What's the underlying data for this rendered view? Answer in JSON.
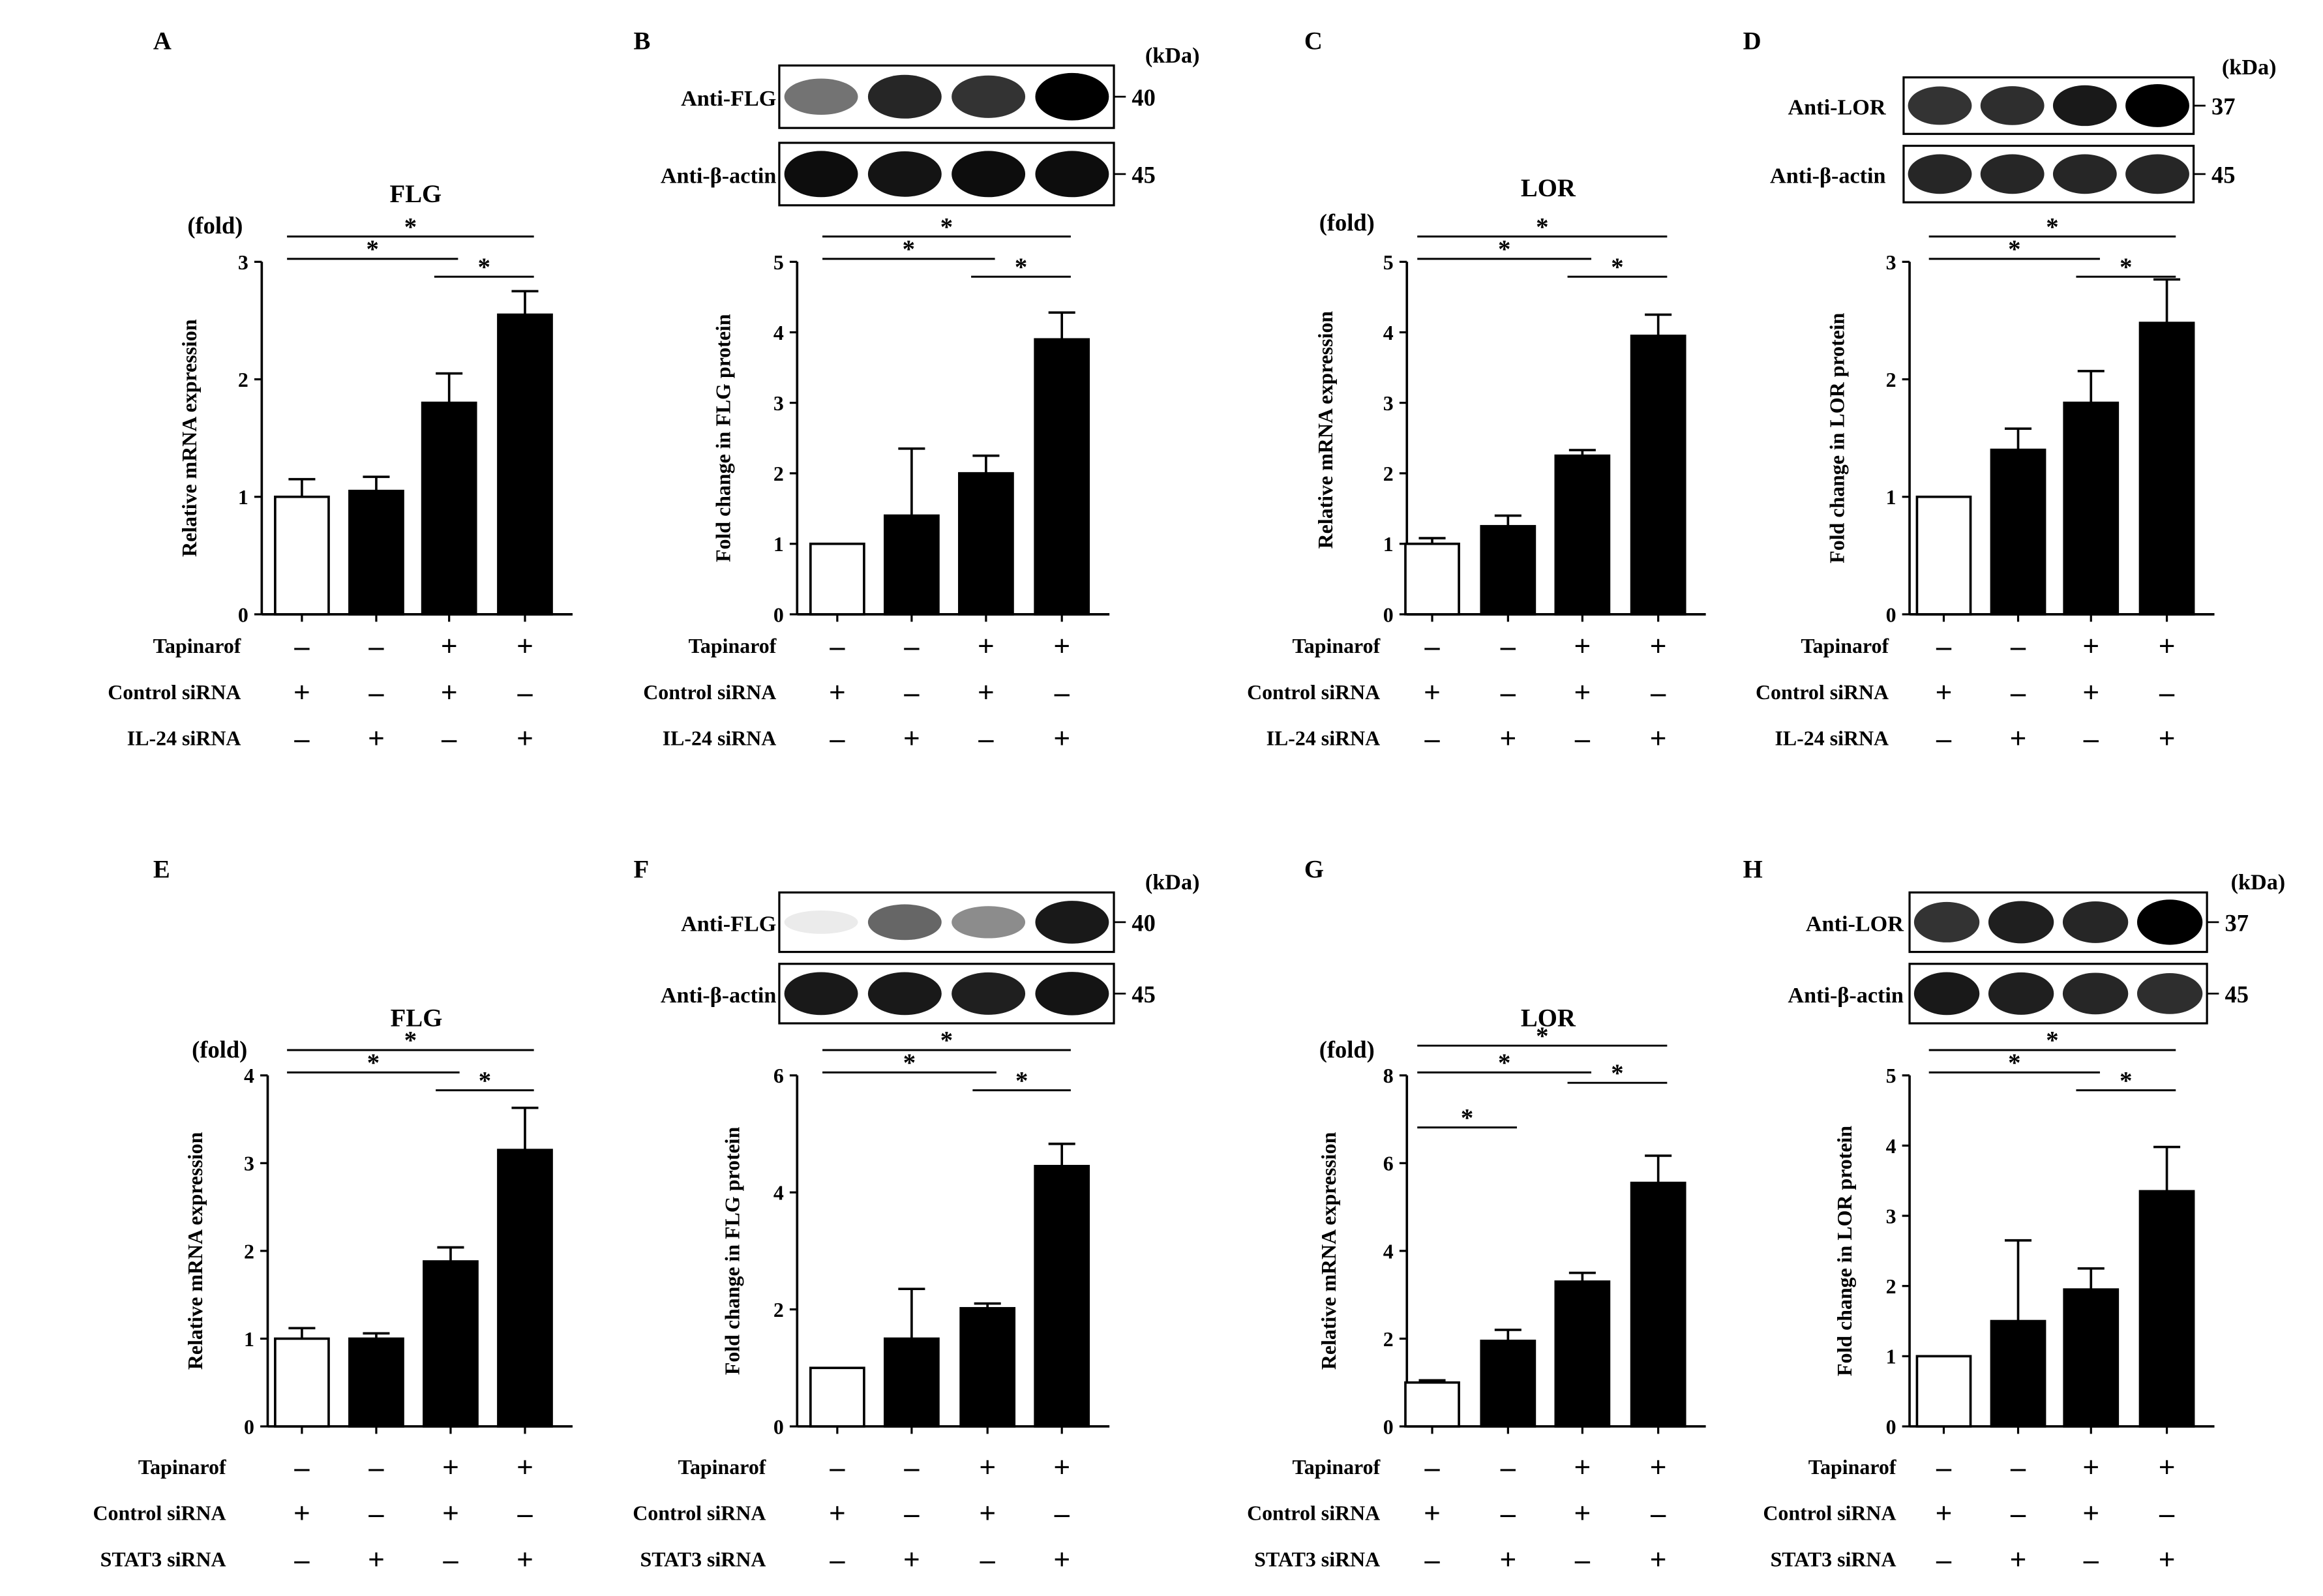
{
  "figure": {
    "unit_label": "(kDa)",
    "fold_label": "(fold)",
    "significance_symbol": "*",
    "plus_symbol": "+",
    "minus_symbol": "–",
    "colors": {
      "bar_fill": "#000000",
      "control_fill": "#ffffff",
      "ink": "#000000"
    }
  },
  "chart_data": [
    {
      "panel": "A",
      "type": "bar",
      "title": "FLG",
      "ylabel": "Relative mRNA expression",
      "ylim": [
        0,
        3
      ],
      "yticks": [
        0,
        1,
        2,
        3
      ],
      "values": [
        1.0,
        1.05,
        1.8,
        2.55
      ],
      "errors": [
        0.15,
        0.12,
        0.25,
        0.2
      ],
      "fills": [
        "white",
        "black",
        "black",
        "black"
      ],
      "show_fold": true,
      "significance": [
        {
          "from": 0,
          "to": 3,
          "label": "*"
        },
        {
          "from": 0,
          "to": 2,
          "label": "*"
        },
        {
          "from": 2,
          "to": 3,
          "label": "*"
        }
      ],
      "conditions": [
        {
          "label": "Tapinarof",
          "signs": [
            "-",
            "-",
            "+",
            "+"
          ]
        },
        {
          "label": "Control siRNA",
          "signs": [
            "+",
            "-",
            "+",
            "-"
          ]
        },
        {
          "label": "IL-24 siRNA",
          "signs": [
            "-",
            "+",
            "-",
            "+"
          ]
        }
      ]
    },
    {
      "panel": "B",
      "type": "bar",
      "title": "",
      "ylabel": "Fold change in FLG protein",
      "ylim": [
        0,
        5
      ],
      "yticks": [
        0,
        1,
        2,
        3,
        4,
        5
      ],
      "values": [
        1.0,
        1.4,
        2.0,
        3.9
      ],
      "errors": [
        0.0,
        0.95,
        0.25,
        0.38
      ],
      "fills": [
        "white",
        "black",
        "black",
        "black"
      ],
      "show_fold": false,
      "significance": [
        {
          "from": 0,
          "to": 3,
          "label": "*"
        },
        {
          "from": 0,
          "to": 2,
          "label": "*"
        },
        {
          "from": 2,
          "to": 3,
          "label": "*"
        }
      ],
      "blot": {
        "rows": [
          {
            "antibody": "Anti-FLG",
            "kda": "40",
            "intensity": [
              0.55,
              0.85,
              0.8,
              1.0
            ]
          },
          {
            "antibody": "Anti-β-actin",
            "kda": "45",
            "intensity": [
              0.95,
              0.92,
              0.95,
              0.95
            ]
          }
        ]
      },
      "conditions": [
        {
          "label": "Tapinarof",
          "signs": [
            "-",
            "-",
            "+",
            "+"
          ]
        },
        {
          "label": "Control siRNA",
          "signs": [
            "+",
            "-",
            "+",
            "-"
          ]
        },
        {
          "label": "IL-24 siRNA",
          "signs": [
            "-",
            "+",
            "-",
            "+"
          ]
        }
      ]
    },
    {
      "panel": "C",
      "type": "bar",
      "title": "LOR",
      "ylabel": "Relative mRNA expression",
      "ylim": [
        0,
        5
      ],
      "yticks": [
        0,
        1,
        2,
        3,
        4,
        5
      ],
      "values": [
        1.0,
        1.25,
        2.25,
        3.95
      ],
      "errors": [
        0.08,
        0.15,
        0.08,
        0.3
      ],
      "fills": [
        "white",
        "black",
        "black",
        "black"
      ],
      "show_fold": true,
      "significance": [
        {
          "from": 0,
          "to": 3,
          "label": "*"
        },
        {
          "from": 0,
          "to": 2,
          "label": "*"
        },
        {
          "from": 2,
          "to": 3,
          "label": "*"
        }
      ],
      "conditions": [
        {
          "label": "Tapinarof",
          "signs": [
            "-",
            "-",
            "+",
            "+"
          ]
        },
        {
          "label": "Control siRNA",
          "signs": [
            "+",
            "-",
            "+",
            "-"
          ]
        },
        {
          "label": "IL-24 siRNA",
          "signs": [
            "-",
            "+",
            "-",
            "+"
          ]
        }
      ]
    },
    {
      "panel": "D",
      "type": "bar",
      "title": "",
      "ylabel": "Fold change in LOR protein",
      "ylim": [
        0,
        3
      ],
      "yticks": [
        0,
        1,
        2,
        3
      ],
      "values": [
        1.0,
        1.4,
        1.8,
        2.48
      ],
      "errors": [
        0.0,
        0.18,
        0.27,
        0.37
      ],
      "fills": [
        "white",
        "black",
        "black",
        "black"
      ],
      "show_fold": false,
      "significance": [
        {
          "from": 0,
          "to": 3,
          "label": "*"
        },
        {
          "from": 0,
          "to": 2,
          "label": "*"
        },
        {
          "from": 2,
          "to": 3,
          "label": "*"
        }
      ],
      "blot": {
        "rows": [
          {
            "antibody": "Anti-LOR",
            "kda": "37",
            "intensity": [
              0.8,
              0.82,
              0.9,
              1.0
            ]
          },
          {
            "antibody": "Anti-β-actin",
            "kda": "45",
            "intensity": [
              0.85,
              0.85,
              0.85,
              0.85
            ]
          }
        ]
      },
      "conditions": [
        {
          "label": "Tapinarof",
          "signs": [
            "-",
            "-",
            "+",
            "+"
          ]
        },
        {
          "label": "Control siRNA",
          "signs": [
            "+",
            "-",
            "+",
            "-"
          ]
        },
        {
          "label": "IL-24 siRNA",
          "signs": [
            "-",
            "+",
            "-",
            "+"
          ]
        }
      ]
    },
    {
      "panel": "E",
      "type": "bar",
      "title": "FLG",
      "ylabel": "Relative mRNA expression",
      "ylim": [
        0,
        4
      ],
      "yticks": [
        0,
        1,
        2,
        3,
        4
      ],
      "values": [
        1.0,
        1.0,
        1.88,
        3.15
      ],
      "errors": [
        0.12,
        0.06,
        0.16,
        0.48
      ],
      "fills": [
        "white",
        "black",
        "black",
        "black"
      ],
      "show_fold": true,
      "significance": [
        {
          "from": 0,
          "to": 3,
          "label": "*"
        },
        {
          "from": 0,
          "to": 2,
          "label": "*"
        },
        {
          "from": 2,
          "to": 3,
          "label": "*"
        }
      ],
      "conditions": [
        {
          "label": "Tapinarof",
          "signs": [
            "-",
            "-",
            "+",
            "+"
          ]
        },
        {
          "label": "Control siRNA",
          "signs": [
            "+",
            "-",
            "+",
            "-"
          ]
        },
        {
          "label": "STAT3 siRNA",
          "signs": [
            "-",
            "+",
            "-",
            "+"
          ]
        }
      ]
    },
    {
      "panel": "F",
      "type": "bar",
      "title": "",
      "ylabel": "Fold change in FLG protein",
      "ylim": [
        0,
        6
      ],
      "yticks": [
        0,
        2,
        4,
        6
      ],
      "values": [
        1.0,
        1.5,
        2.02,
        4.45
      ],
      "errors": [
        0.0,
        0.85,
        0.08,
        0.38
      ],
      "fills": [
        "white",
        "black",
        "black",
        "black"
      ],
      "show_fold": false,
      "significance": [
        {
          "from": 0,
          "to": 3,
          "label": "*"
        },
        {
          "from": 0,
          "to": 2,
          "label": "*"
        },
        {
          "from": 2,
          "to": 3,
          "label": "*"
        }
      ],
      "blot": {
        "rows": [
          {
            "antibody": "Anti-FLG",
            "kda": "40",
            "intensity": [
              0.08,
              0.6,
              0.45,
              0.9
            ]
          },
          {
            "antibody": "Anti-β-actin",
            "kda": "45",
            "intensity": [
              0.9,
              0.9,
              0.88,
              0.92
            ]
          }
        ]
      },
      "conditions": [
        {
          "label": "Tapinarof",
          "signs": [
            "-",
            "-",
            "+",
            "+"
          ]
        },
        {
          "label": "Control siRNA",
          "signs": [
            "+",
            "-",
            "+",
            "-"
          ]
        },
        {
          "label": "STAT3 siRNA",
          "signs": [
            "-",
            "+",
            "-",
            "+"
          ]
        }
      ]
    },
    {
      "panel": "G",
      "type": "bar",
      "title": "LOR",
      "ylabel": "Relative mRNA expression",
      "ylim": [
        0,
        8
      ],
      "yticks": [
        0,
        2,
        4,
        6,
        8
      ],
      "values": [
        1.0,
        1.95,
        3.3,
        5.55
      ],
      "errors": [
        0.05,
        0.25,
        0.2,
        0.62
      ],
      "fills": [
        "white",
        "black",
        "black",
        "black"
      ],
      "show_fold": true,
      "significance": [
        {
          "from": 0,
          "to": 3,
          "label": "*"
        },
        {
          "from": 0,
          "to": 2,
          "label": "*"
        },
        {
          "from": 2,
          "to": 3,
          "label": "*"
        },
        {
          "from": 0,
          "to": 1,
          "label": "*"
        }
      ],
      "conditions": [
        {
          "label": "Tapinarof",
          "signs": [
            "-",
            "-",
            "+",
            "+"
          ]
        },
        {
          "label": "Control siRNA",
          "signs": [
            "+",
            "-",
            "+",
            "-"
          ]
        },
        {
          "label": "STAT3 siRNA",
          "signs": [
            "-",
            "+",
            "-",
            "+"
          ]
        }
      ]
    },
    {
      "panel": "H",
      "type": "bar",
      "title": "",
      "ylabel": "Fold change in LOR protein",
      "ylim": [
        0,
        5
      ],
      "yticks": [
        0,
        1,
        2,
        3,
        4,
        5
      ],
      "values": [
        1.0,
        1.5,
        1.95,
        3.35
      ],
      "errors": [
        0.0,
        1.15,
        0.3,
        0.63
      ],
      "fills": [
        "white",
        "black",
        "black",
        "black"
      ],
      "show_fold": false,
      "significance": [
        {
          "from": 0,
          "to": 3,
          "label": "*"
        },
        {
          "from": 0,
          "to": 2,
          "label": "*"
        },
        {
          "from": 2,
          "to": 3,
          "label": "*"
        }
      ],
      "blot": {
        "rows": [
          {
            "antibody": "Anti-LOR",
            "kda": "37",
            "intensity": [
              0.8,
              0.88,
              0.85,
              1.0
            ]
          },
          {
            "antibody": "Anti-β-actin",
            "kda": "45",
            "intensity": [
              0.9,
              0.88,
              0.85,
              0.82
            ]
          }
        ]
      },
      "conditions": [
        {
          "label": "Tapinarof",
          "signs": [
            "-",
            "-",
            "+",
            "+"
          ]
        },
        {
          "label": "Control siRNA",
          "signs": [
            "+",
            "-",
            "+",
            "-"
          ]
        },
        {
          "label": "STAT3 siRNA",
          "signs": [
            "-",
            "+",
            "-",
            "+"
          ]
        }
      ]
    }
  ]
}
